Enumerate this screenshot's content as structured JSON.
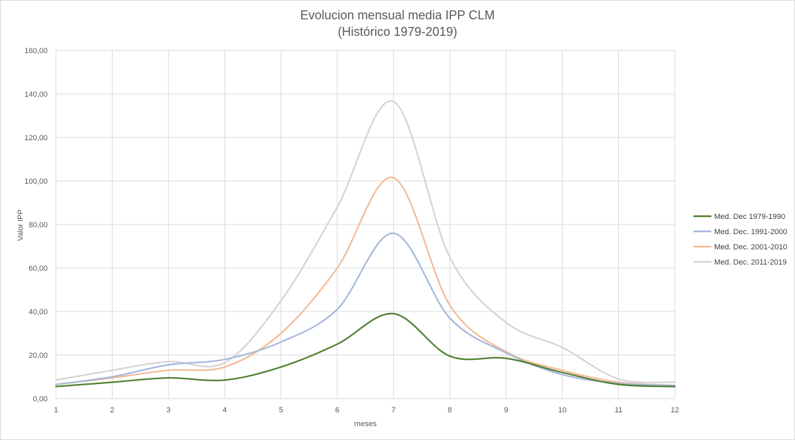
{
  "chart_data": {
    "type": "line",
    "title": "Evolucion mensual media  IPP CLM",
    "subtitle": "(Histórico 1979-2019)",
    "xlabel": "meses",
    "ylabel": "Valor IPP",
    "x": [
      1,
      2,
      3,
      4,
      5,
      6,
      7,
      8,
      9,
      10,
      11,
      12
    ],
    "x_tick_labels": [
      "1",
      "2",
      "3",
      "4",
      "5",
      "6",
      "7",
      "8",
      "9",
      "10",
      "11",
      "12"
    ],
    "ylim": [
      0,
      160
    ],
    "y_tick_labels": [
      "0,00",
      "20,00",
      "40,00",
      "60,00",
      "80,00",
      "100,00",
      "120,00",
      "140,00",
      "160,00"
    ],
    "grid": true,
    "smooth": true,
    "legend_position": "right",
    "series": [
      {
        "name": "Med. Dec 1979-1990",
        "color": "#4f7f2f",
        "values": [
          5.5,
          7.5,
          9.5,
          8.5,
          14.5,
          25,
          39,
          19.5,
          18.5,
          12,
          6.5,
          5.5
        ]
      },
      {
        "name": "Med. Dec. 1991-2000",
        "color": "#a5b8dc",
        "values": [
          6.5,
          10,
          15.5,
          18,
          26,
          41,
          76,
          37,
          21,
          11,
          7,
          6
        ]
      },
      {
        "name": "Med. Dec. 2001-2010",
        "color": "#f4bb94",
        "values": [
          6.5,
          9.5,
          13,
          14.5,
          30,
          60,
          101.5,
          43,
          21.5,
          13,
          7.5,
          6
        ]
      },
      {
        "name": "Med. Dec. 2011-2019",
        "color": "#d4d4d4",
        "values": [
          8.5,
          13,
          17,
          16.5,
          45,
          88,
          136.5,
          65,
          35,
          23.5,
          9,
          7.5
        ]
      }
    ]
  }
}
